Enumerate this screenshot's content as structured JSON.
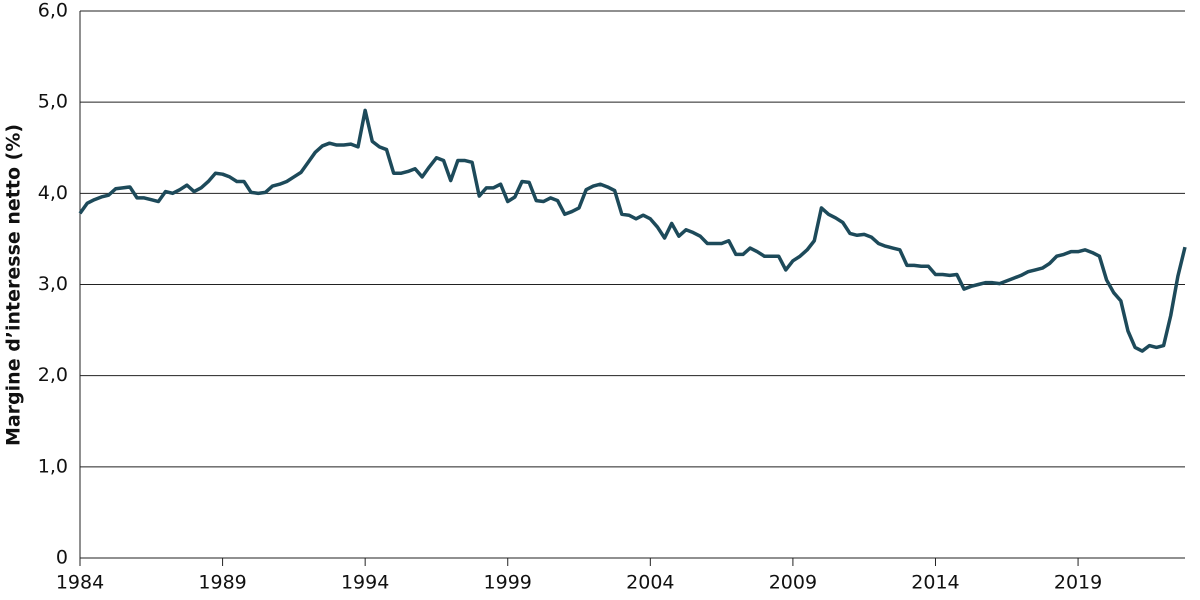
{
  "chart_data": {
    "type": "line",
    "y_label": "Margine d’interesse netto (%)",
    "x": [
      1984,
      1984.25,
      1984.5,
      1984.75,
      1985,
      1985.25,
      1985.5,
      1985.75,
      1986,
      1986.25,
      1986.5,
      1986.75,
      1987,
      1987.25,
      1987.5,
      1987.75,
      1988,
      1988.25,
      1988.5,
      1988.75,
      1989,
      1989.25,
      1989.5,
      1989.75,
      1990,
      1990.25,
      1990.5,
      1990.75,
      1991,
      1991.25,
      1991.5,
      1991.75,
      1992,
      1992.25,
      1992.5,
      1992.75,
      1993,
      1993.25,
      1993.5,
      1993.75,
      1994,
      1994.25,
      1994.5,
      1994.75,
      1995,
      1995.25,
      1995.5,
      1995.75,
      1996,
      1996.25,
      1996.5,
      1996.75,
      1997,
      1997.25,
      1997.5,
      1997.75,
      1998,
      1998.25,
      1998.5,
      1998.75,
      1999,
      1999.25,
      1999.5,
      1999.75,
      2000,
      2000.25,
      2000.5,
      2000.75,
      2001,
      2001.25,
      2001.5,
      2001.75,
      2002,
      2002.25,
      2002.5,
      2002.75,
      2003,
      2003.25,
      2003.5,
      2003.75,
      2004,
      2004.25,
      2004.5,
      2004.75,
      2005,
      2005.25,
      2005.5,
      2005.75,
      2006,
      2006.25,
      2006.5,
      2006.75,
      2007,
      2007.25,
      2007.5,
      2007.75,
      2008,
      2008.25,
      2008.5,
      2008.75,
      2009,
      2009.25,
      2009.5,
      2009.75,
      2010,
      2010.25,
      2010.5,
      2010.75,
      2011,
      2011.25,
      2011.5,
      2011.75,
      2012,
      2012.25,
      2012.5,
      2012.75,
      2013,
      2013.25,
      2013.5,
      2013.75,
      2014,
      2014.25,
      2014.5,
      2014.75,
      2015,
      2015.25,
      2015.5,
      2015.75,
      2016,
      2016.25,
      2016.5,
      2016.75,
      2017,
      2017.25,
      2017.5,
      2017.75,
      2018,
      2018.25,
      2018.5,
      2018.75,
      2019,
      2019.25,
      2019.5,
      2019.75,
      2020,
      2020.25,
      2020.5,
      2020.75,
      2021,
      2021.25,
      2021.5,
      2021.75,
      2022,
      2022.25,
      2022.5,
      2022.75
    ],
    "values": [
      3.78,
      3.89,
      3.93,
      3.96,
      3.98,
      4.05,
      4.06,
      4.07,
      3.95,
      3.95,
      3.93,
      3.91,
      4.02,
      4.0,
      4.04,
      4.09,
      4.02,
      4.06,
      4.13,
      4.22,
      4.21,
      4.18,
      4.13,
      4.13,
      4.01,
      4.0,
      4.01,
      4.08,
      4.1,
      4.13,
      4.18,
      4.23,
      4.34,
      4.45,
      4.52,
      4.55,
      4.53,
      4.53,
      4.54,
      4.51,
      4.91,
      4.57,
      4.51,
      4.48,
      4.22,
      4.22,
      4.24,
      4.27,
      4.18,
      4.29,
      4.39,
      4.36,
      4.14,
      4.36,
      4.36,
      4.34,
      3.97,
      4.06,
      4.06,
      4.1,
      3.91,
      3.96,
      4.13,
      4.12,
      3.92,
      3.91,
      3.95,
      3.92,
      3.77,
      3.8,
      3.84,
      4.04,
      4.08,
      4.1,
      4.07,
      4.03,
      3.77,
      3.76,
      3.72,
      3.76,
      3.72,
      3.63,
      3.51,
      3.67,
      3.53,
      3.6,
      3.57,
      3.53,
      3.45,
      3.45,
      3.45,
      3.48,
      3.33,
      3.33,
      3.4,
      3.36,
      3.31,
      3.31,
      3.31,
      3.16,
      3.26,
      3.31,
      3.38,
      3.48,
      3.84,
      3.77,
      3.73,
      3.68,
      3.56,
      3.54,
      3.55,
      3.52,
      3.45,
      3.42,
      3.4,
      3.38,
      3.21,
      3.21,
      3.2,
      3.2,
      3.11,
      3.11,
      3.1,
      3.11,
      2.95,
      2.98,
      3.0,
      3.02,
      3.02,
      3.01,
      3.04,
      3.07,
      3.1,
      3.14,
      3.16,
      3.18,
      3.23,
      3.31,
      3.33,
      3.36,
      3.36,
      3.38,
      3.35,
      3.31,
      3.05,
      2.91,
      2.82,
      2.49,
      2.31,
      2.27,
      2.33,
      2.31,
      2.33,
      2.66,
      3.09,
      3.41
    ],
    "color": "#1d4a5a",
    "xlim": [
      1984,
      2022.75
    ],
    "xticks": [
      1984,
      1989,
      1994,
      1999,
      2004,
      2009,
      2014,
      2019
    ],
    "ylim": [
      0,
      6
    ],
    "yticks": [
      0,
      {
        "value": 1,
        "label": "1,0"
      },
      {
        "value": 2,
        "label": "2,0"
      },
      {
        "value": 3,
        "label": "3,0"
      },
      {
        "value": 4,
        "label": "4,0"
      },
      {
        "value": 5,
        "label": "5,0"
      },
      {
        "value": 6,
        "label": "6,0"
      }
    ],
    "grid": true
  }
}
